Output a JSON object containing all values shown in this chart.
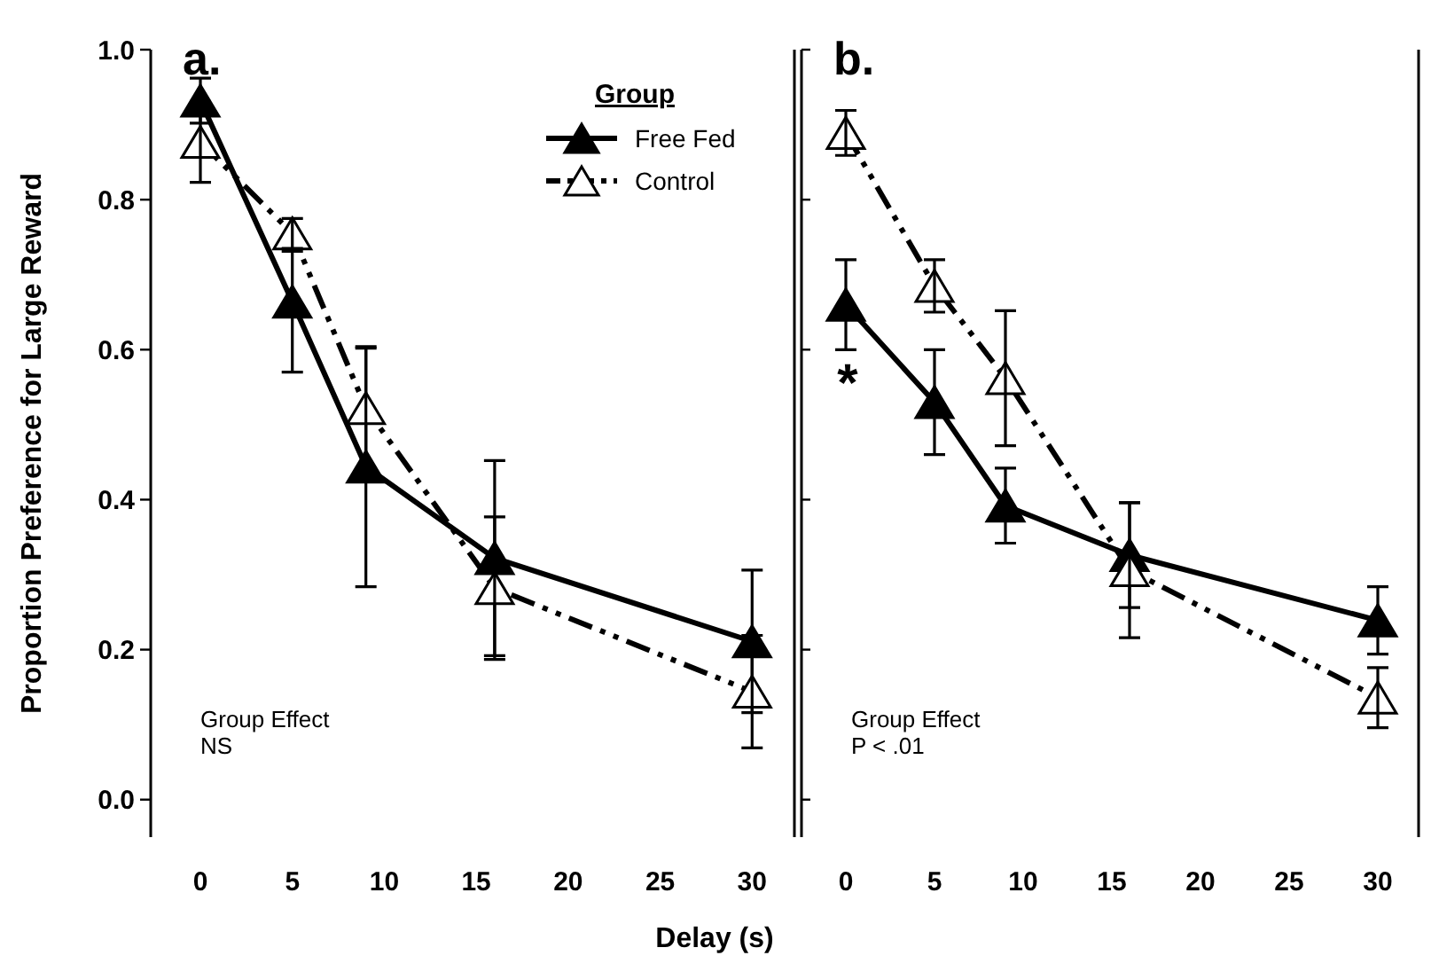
{
  "chart_data": [
    {
      "type": "line",
      "title": "a.",
      "xlabel": "Delay (s)",
      "ylabel": "Proportion Preference for Large Reward",
      "legend_title": "Group",
      "legend": "top right",
      "marker": "triangle",
      "x": [
        0,
        5,
        9,
        16,
        30
      ],
      "xlim": [
        -2.7,
        32.3
      ],
      "xticks": [
        0,
        5,
        10,
        15,
        20,
        25,
        30
      ],
      "ylim": [
        -0.05,
        1.0
      ],
      "yticks": [
        {
          "value": 0,
          "label": "0.0"
        },
        0.2,
        0.4,
        0.6,
        0.8,
        {
          "value": 1,
          "label": "1.0"
        }
      ],
      "annotations": [
        "Group Effect\nNS"
      ],
      "series": [
        {
          "name": "Free Fed",
          "color": "#000000",
          "line_style": "solid",
          "values": [
            0.932,
            0.664,
            0.444,
            0.322,
            0.211
          ],
          "errors": [
            0.03,
            [
              0.57,
              0.731
            ],
            0.16,
            0.13,
            0.095
          ]
        },
        {
          "name": "Control",
          "color": "#000000",
          "line_style": "dashed",
          "values": [
            0.877,
            0.755,
            0.522,
            0.282,
            0.144
          ],
          "errors": [
            0.054,
            0.02,
            0.08,
            0.095,
            0.075
          ]
        }
      ]
    },
    {
      "type": "line",
      "title": "b.",
      "marker": "triangle",
      "tick_labels": "x",
      "x": [
        0,
        5,
        9,
        16,
        30
      ],
      "xlim": [
        -2.5,
        32.3
      ],
      "xticks": [
        0,
        5,
        10,
        15,
        20,
        25,
        30
      ],
      "ylim": [
        -0.05,
        1.0
      ],
      "yticks": [
        0,
        0.2,
        0.4,
        0.6,
        0.8,
        1
      ],
      "annotations": [
        "Group Effect\nP < .01",
        "*"
      ],
      "series": [
        {
          "color": "#000000",
          "line_style": "solid",
          "values": [
            0.66,
            0.53,
            0.392,
            0.326,
            0.239
          ],
          "errors": [
            0.06,
            0.07,
            0.05,
            0.07,
            0.045
          ]
        },
        {
          "color": "#000000",
          "line_style": "dashed",
          "values": [
            0.889,
            0.685,
            0.562,
            0.306,
            0.136
          ],
          "errors": [
            0.03,
            0.035,
            0.09,
            0.09,
            0.04
          ]
        }
      ]
    }
  ]
}
